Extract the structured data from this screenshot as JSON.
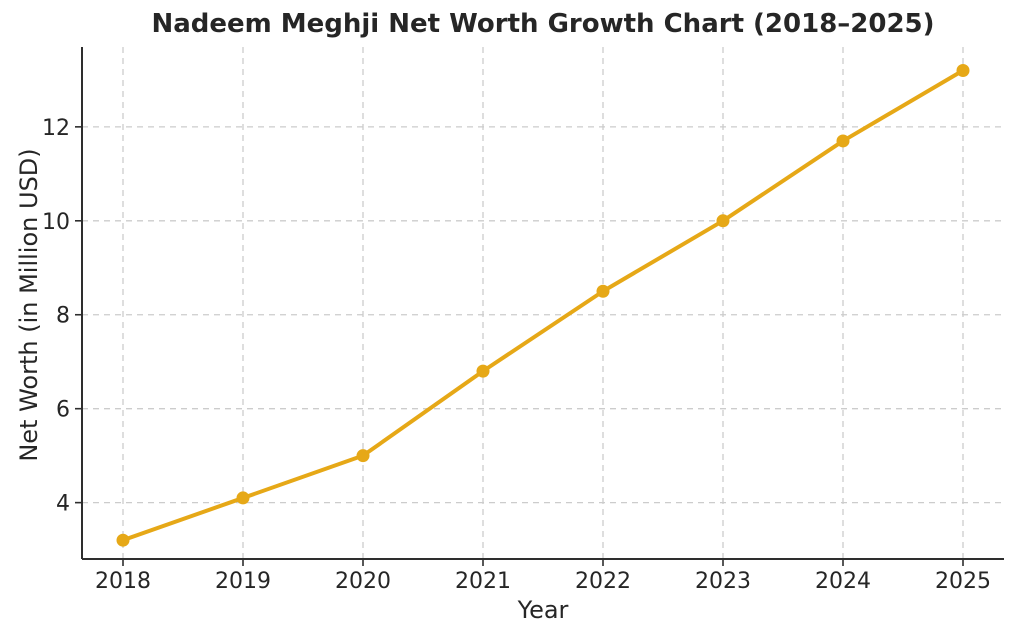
{
  "chart_data": {
    "type": "line",
    "title": "Nadeem Meghji Net Worth Growth Chart (2018–2025)",
    "xlabel": "Year",
    "ylabel": "Net Worth (in Million USD)",
    "categories": [
      "2018",
      "2019",
      "2020",
      "2021",
      "2022",
      "2023",
      "2024",
      "2025"
    ],
    "series": [
      {
        "name": "Net Worth",
        "values": [
          3.2,
          4.1,
          5.0,
          6.8,
          8.5,
          10.0,
          11.7,
          13.2
        ]
      }
    ],
    "yticks": [
      4,
      6,
      8,
      10,
      12
    ],
    "ylim": [
      2.8,
      13.7
    ],
    "grid": true,
    "legend_position": "none",
    "line_color": "#E6A817",
    "marker": "circle",
    "background_color": "#FFFFFF",
    "grid_color": "#CCCCCC",
    "text_color": "#262626"
  }
}
